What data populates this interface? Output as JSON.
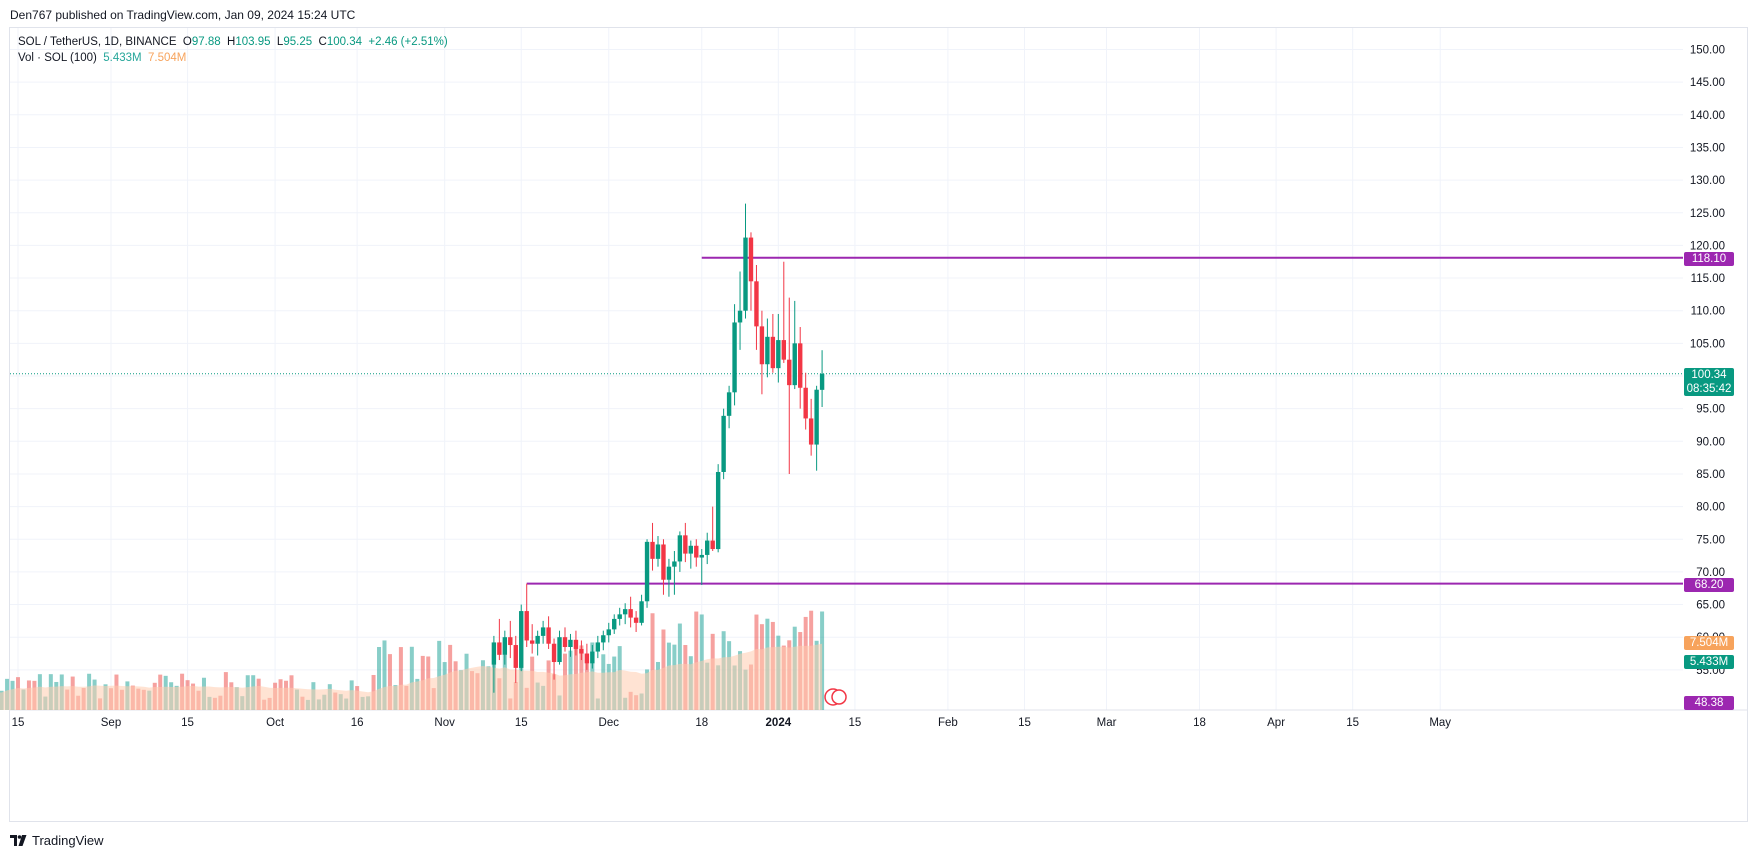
{
  "header": {
    "published_text": "Den767 published on TradingView.com, Jan 09, 2024 15:24 UTC"
  },
  "legend": {
    "symbol": "SOL / TetherUS, 1D, BINANCE",
    "open_label": "O",
    "open": "97.88",
    "high_label": "H",
    "high": "103.95",
    "low_label": "L",
    "low": "95.25",
    "close_label": "C",
    "close": "100.34",
    "change": "+2.46 (+2.51%)",
    "volume_label": "Vol · SOL (100)",
    "volume": "5.433M",
    "volume_ma": "7.504M"
  },
  "price_tags": {
    "resistance": "118.10",
    "last_price": "100.34",
    "countdown": "08:35:42",
    "support": "68.20",
    "volume_ma": "7.504M",
    "volume": "5.433M",
    "bottom": "48.38"
  },
  "footer": {
    "brand": "TradingView"
  },
  "colors": {
    "up": "#089981",
    "down": "#f23645",
    "vol_up": "#26a69a",
    "vol_down": "#ef5350",
    "vol_ma_fill": "#ffccae",
    "level_line": "#9c27b0",
    "tag_purple": "#9c27b0",
    "tag_orange": "#f7a35c",
    "tag_green": "#089981"
  },
  "chart_data": {
    "type": "candlestick",
    "title": "SOL / TetherUS, 1D, BINANCE",
    "interval": "1D",
    "y_ticks": [
      "150.00",
      "145.00",
      "140.00",
      "135.00",
      "130.00",
      "125.00",
      "120.00",
      "115.00",
      "110.00",
      "105.00",
      "100.00",
      "95.00",
      "90.00",
      "85.00",
      "80.00",
      "75.00",
      "70.00",
      "65.00",
      "60.00",
      "55.00"
    ],
    "ylim": [
      51,
      154
    ],
    "x_ticks": [
      {
        "label": "15",
        "date": "2023-08-15"
      },
      {
        "label": "Sep",
        "date": "2023-09-01"
      },
      {
        "label": "15",
        "date": "2023-09-15"
      },
      {
        "label": "Oct",
        "date": "2023-10-01"
      },
      {
        "label": "16",
        "date": "2023-10-16"
      },
      {
        "label": "Nov",
        "date": "2023-11-01"
      },
      {
        "label": "15",
        "date": "2023-11-15"
      },
      {
        "label": "Dec",
        "date": "2023-12-01"
      },
      {
        "label": "18",
        "date": "2023-12-18"
      },
      {
        "label": "2024",
        "date": "2024-01-01"
      },
      {
        "label": "15",
        "date": "2024-01-15"
      },
      {
        "label": "Feb",
        "date": "2024-02-01"
      },
      {
        "label": "15",
        "date": "2024-02-15"
      },
      {
        "label": "Mar",
        "date": "2024-03-01"
      },
      {
        "label": "18",
        "date": "2024-03-18"
      },
      {
        "label": "Apr",
        "date": "2024-04-01"
      },
      {
        "label": "15",
        "date": "2024-04-15"
      },
      {
        "label": "May",
        "date": "2024-05-01"
      }
    ],
    "grid": true,
    "horizontal_levels": [
      {
        "price": 118.1,
        "start": "2023-12-18"
      },
      {
        "price": 68.2,
        "start": "2023-11-16"
      }
    ],
    "last_price": 100.34,
    "candles": [
      {
        "d": "2023-11-10",
        "o": 55.8,
        "h": 60.2,
        "l": 51.5,
        "c": 59.2
      },
      {
        "d": "2023-11-11",
        "o": 59.2,
        "h": 62.8,
        "l": 56.5,
        "c": 57.3
      },
      {
        "d": "2023-11-12",
        "o": 57.3,
        "h": 61.0,
        "l": 55.8,
        "c": 60.0
      },
      {
        "d": "2023-11-13",
        "o": 60.0,
        "h": 62.5,
        "l": 56.8,
        "c": 58.8
      },
      {
        "d": "2023-11-14",
        "o": 58.8,
        "h": 60.2,
        "l": 53.0,
        "c": 55.3
      },
      {
        "d": "2023-11-15",
        "o": 55.3,
        "h": 65.0,
        "l": 54.8,
        "c": 64.0
      },
      {
        "d": "2023-11-16",
        "o": 64.0,
        "h": 68.2,
        "l": 58.5,
        "c": 59.5
      },
      {
        "d": "2023-11-17",
        "o": 59.5,
        "h": 62.0,
        "l": 57.5,
        "c": 59.0
      },
      {
        "d": "2023-11-18",
        "o": 59.0,
        "h": 61.0,
        "l": 57.2,
        "c": 60.2
      },
      {
        "d": "2023-11-19",
        "o": 60.2,
        "h": 62.5,
        "l": 59.0,
        "c": 61.5
      },
      {
        "d": "2023-11-20",
        "o": 61.5,
        "h": 63.2,
        "l": 58.2,
        "c": 59.0
      },
      {
        "d": "2023-11-21",
        "o": 59.0,
        "h": 59.8,
        "l": 53.5,
        "c": 56.2
      },
      {
        "d": "2023-11-22",
        "o": 56.2,
        "h": 61.0,
        "l": 55.8,
        "c": 60.0
      },
      {
        "d": "2023-11-23",
        "o": 60.0,
        "h": 61.5,
        "l": 57.8,
        "c": 58.5
      },
      {
        "d": "2023-11-24",
        "o": 58.5,
        "h": 60.5,
        "l": 57.0,
        "c": 59.6
      },
      {
        "d": "2023-11-25",
        "o": 59.6,
        "h": 61.0,
        "l": 57.2,
        "c": 58.2
      },
      {
        "d": "2023-11-26",
        "o": 58.2,
        "h": 59.5,
        "l": 56.5,
        "c": 57.5
      },
      {
        "d": "2023-11-27",
        "o": 57.5,
        "h": 59.0,
        "l": 55.0,
        "c": 56.0
      },
      {
        "d": "2023-11-28",
        "o": 56.0,
        "h": 58.8,
        "l": 55.2,
        "c": 57.8
      },
      {
        "d": "2023-11-29",
        "o": 57.8,
        "h": 60.2,
        "l": 56.8,
        "c": 59.2
      },
      {
        "d": "2023-11-30",
        "o": 59.2,
        "h": 61.0,
        "l": 58.0,
        "c": 60.3
      },
      {
        "d": "2023-12-01",
        "o": 60.3,
        "h": 62.2,
        "l": 59.2,
        "c": 61.2
      },
      {
        "d": "2023-12-02",
        "o": 61.2,
        "h": 63.5,
        "l": 60.5,
        "c": 62.8
      },
      {
        "d": "2023-12-03",
        "o": 62.8,
        "h": 64.5,
        "l": 61.8,
        "c": 63.5
      },
      {
        "d": "2023-12-04",
        "o": 63.5,
        "h": 65.2,
        "l": 62.0,
        "c": 64.3
      },
      {
        "d": "2023-12-05",
        "o": 64.3,
        "h": 66.2,
        "l": 61.5,
        "c": 63.0
      },
      {
        "d": "2023-12-06",
        "o": 63.0,
        "h": 64.0,
        "l": 60.8,
        "c": 62.2
      },
      {
        "d": "2023-12-07",
        "o": 62.2,
        "h": 66.5,
        "l": 61.8,
        "c": 65.5
      },
      {
        "d": "2023-12-08",
        "o": 65.5,
        "h": 75.0,
        "l": 64.5,
        "c": 74.6
      },
      {
        "d": "2023-12-09",
        "o": 74.6,
        "h": 77.5,
        "l": 70.2,
        "c": 72.0
      },
      {
        "d": "2023-12-10",
        "o": 72.0,
        "h": 75.5,
        "l": 70.8,
        "c": 74.2
      },
      {
        "d": "2023-12-11",
        "o": 74.2,
        "h": 75.0,
        "l": 66.5,
        "c": 68.8
      },
      {
        "d": "2023-12-12",
        "o": 68.8,
        "h": 72.0,
        "l": 66.2,
        "c": 70.8
      },
      {
        "d": "2023-12-13",
        "o": 70.8,
        "h": 73.2,
        "l": 66.5,
        "c": 71.6
      },
      {
        "d": "2023-12-14",
        "o": 71.6,
        "h": 76.2,
        "l": 70.0,
        "c": 75.6
      },
      {
        "d": "2023-12-15",
        "o": 75.6,
        "h": 77.5,
        "l": 71.5,
        "c": 72.8
      },
      {
        "d": "2023-12-16",
        "o": 72.8,
        "h": 74.8,
        "l": 70.5,
        "c": 74.0
      },
      {
        "d": "2023-12-17",
        "o": 74.0,
        "h": 75.0,
        "l": 70.8,
        "c": 72.2
      },
      {
        "d": "2023-12-18",
        "o": 72.2,
        "h": 73.5,
        "l": 68.0,
        "c": 72.6
      },
      {
        "d": "2023-12-19",
        "o": 72.6,
        "h": 76.0,
        "l": 71.2,
        "c": 74.8
      },
      {
        "d": "2023-12-20",
        "o": 74.8,
        "h": 80.0,
        "l": 73.2,
        "c": 73.5
      },
      {
        "d": "2023-12-21",
        "o": 73.5,
        "h": 86.5,
        "l": 73.0,
        "c": 85.3
      },
      {
        "d": "2023-12-22",
        "o": 85.3,
        "h": 95.0,
        "l": 84.2,
        "c": 93.9
      },
      {
        "d": "2023-12-23",
        "o": 93.9,
        "h": 98.5,
        "l": 92.0,
        "c": 97.5
      },
      {
        "d": "2023-12-24",
        "o": 97.5,
        "h": 111.0,
        "l": 95.5,
        "c": 108.2
      },
      {
        "d": "2023-12-25",
        "o": 108.2,
        "h": 116.0,
        "l": 104.0,
        "c": 110.0
      },
      {
        "d": "2023-12-26",
        "o": 110.0,
        "h": 126.4,
        "l": 108.8,
        "c": 121.2
      },
      {
        "d": "2023-12-27",
        "o": 121.2,
        "h": 122.0,
        "l": 110.0,
        "c": 114.5
      },
      {
        "d": "2023-12-28",
        "o": 114.5,
        "h": 117.0,
        "l": 104.0,
        "c": 107.6
      },
      {
        "d": "2023-12-29",
        "o": 107.6,
        "h": 110.0,
        "l": 97.2,
        "c": 101.8
      },
      {
        "d": "2023-12-30",
        "o": 101.8,
        "h": 108.8,
        "l": 99.8,
        "c": 106.0
      },
      {
        "d": "2023-12-31",
        "o": 106.0,
        "h": 109.5,
        "l": 100.5,
        "c": 101.2
      },
      {
        "d": "2024-01-01",
        "o": 101.2,
        "h": 109.5,
        "l": 99.0,
        "c": 105.5
      },
      {
        "d": "2024-01-02",
        "o": 105.5,
        "h": 117.5,
        "l": 102.0,
        "c": 102.5
      },
      {
        "d": "2024-01-03",
        "o": 102.5,
        "h": 112.0,
        "l": 85.0,
        "c": 98.6
      },
      {
        "d": "2024-01-04",
        "o": 98.6,
        "h": 111.5,
        "l": 98.0,
        "c": 105.0
      },
      {
        "d": "2024-01-05",
        "o": 105.0,
        "h": 107.5,
        "l": 95.0,
        "c": 98.2
      },
      {
        "d": "2024-01-06",
        "o": 98.2,
        "h": 100.5,
        "l": 91.8,
        "c": 93.5
      },
      {
        "d": "2024-01-07",
        "o": 93.5,
        "h": 96.5,
        "l": 87.8,
        "c": 89.5
      },
      {
        "d": "2024-01-08",
        "o": 89.5,
        "h": 98.5,
        "l": 85.5,
        "c": 97.9
      },
      {
        "d": "2024-01-09",
        "o": 97.88,
        "h": 103.95,
        "l": 95.25,
        "c": 100.34
      }
    ],
    "volume": {
      "series_name": "Vol · SOL (100)",
      "ma_value": "7.504M",
      "last_value": "5.433M"
    }
  }
}
